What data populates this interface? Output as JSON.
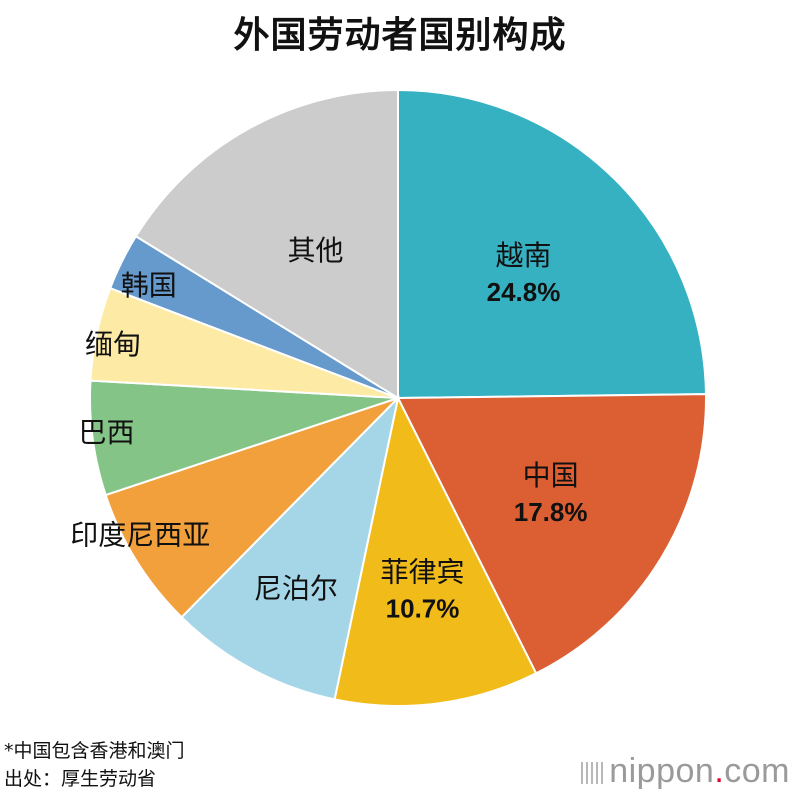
{
  "title": "外国劳动者国别构成",
  "chart_data": {
    "type": "pie",
    "title": "外国劳动者国别构成",
    "slices": [
      {
        "label": "越南",
        "value": 24.8,
        "value_label": "24.8%",
        "color": "#35b1c1"
      },
      {
        "label": "中国",
        "value": 17.8,
        "value_label": "17.8%",
        "color": "#db5f33"
      },
      {
        "label": "菲律宾",
        "value": 10.7,
        "value_label": "10.7%",
        "color": "#f1bb1a"
      },
      {
        "label": "尼泊尔",
        "value": 9.1,
        "color": "#a4d6e8"
      },
      {
        "label": "印度尼西亚",
        "value": 7.5,
        "color": "#f1a03c"
      },
      {
        "label": "巴西",
        "value": 6.0,
        "color": "#85c487"
      },
      {
        "label": "缅甸",
        "value": 4.9,
        "color": "#fdeba5"
      },
      {
        "label": "韩国",
        "value": 3.0,
        "color": "#6699cc"
      },
      {
        "label": "其他",
        "value": 16.2,
        "color": "#cccccc"
      }
    ]
  },
  "notes": {
    "note1": "*中国包含香港和澳门",
    "note2": "出处：厚生劳动省"
  },
  "brand": {
    "name": "nippon",
    "dot": ".",
    "tld": "com"
  }
}
